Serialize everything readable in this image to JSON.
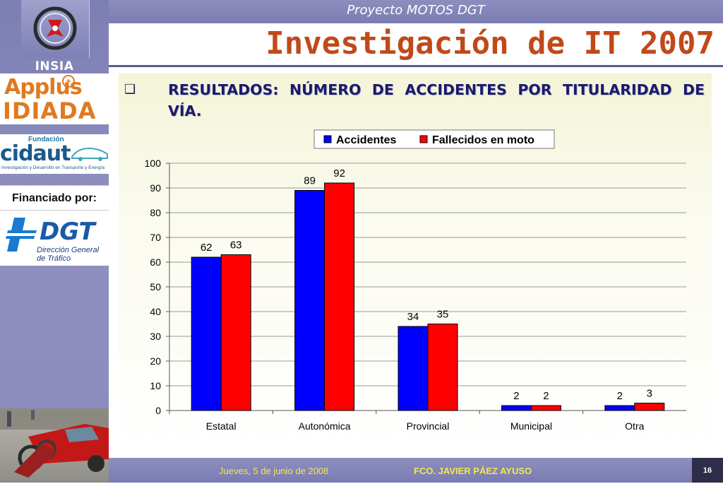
{
  "header": {
    "project_title": "Proyecto MOTOS DGT",
    "main_title": "Investigación de IT 2007"
  },
  "sidebar": {
    "insia_label": "INSIA",
    "applus_line1": "Applus",
    "applus_line2": "IDIADA",
    "cidaut_top": "Fundación",
    "cidaut_main": "cidaut",
    "cidaut_sub": "Investigación y Desarrollo en Transporte y Energía",
    "financed_label": "Financiado por:",
    "dgt_main": "DGT",
    "dgt_sub_line1": "Dirección General",
    "dgt_sub_line2": "de Tráfico"
  },
  "content": {
    "bullet_icon": "checkbox-bullet-icon",
    "heading": "RESULTADOS: NÚMERO DE ACCIDENTES POR TITULARIDAD DE VÍA."
  },
  "chart_data": {
    "type": "bar",
    "categories": [
      "Estatal",
      "Autonómica",
      "Provincial",
      "Municipal",
      "Otra"
    ],
    "series": [
      {
        "name": "Accidentes",
        "values": [
          62,
          89,
          34,
          2,
          2
        ],
        "color": "#0000ff"
      },
      {
        "name": "Fallecidos en moto",
        "values": [
          63,
          92,
          35,
          2,
          3
        ],
        "color": "#ff0000"
      }
    ],
    "ylim": [
      0,
      100
    ],
    "yticks": [
      0,
      10,
      20,
      30,
      40,
      50,
      60,
      70,
      80,
      90,
      100
    ],
    "grid": true,
    "legend": "top",
    "data_labels": true
  },
  "footer": {
    "date": "Jueves, 5 de junio de 2008",
    "author": "FCO. JAVIER PÁEZ AYUSO",
    "page": "16"
  }
}
